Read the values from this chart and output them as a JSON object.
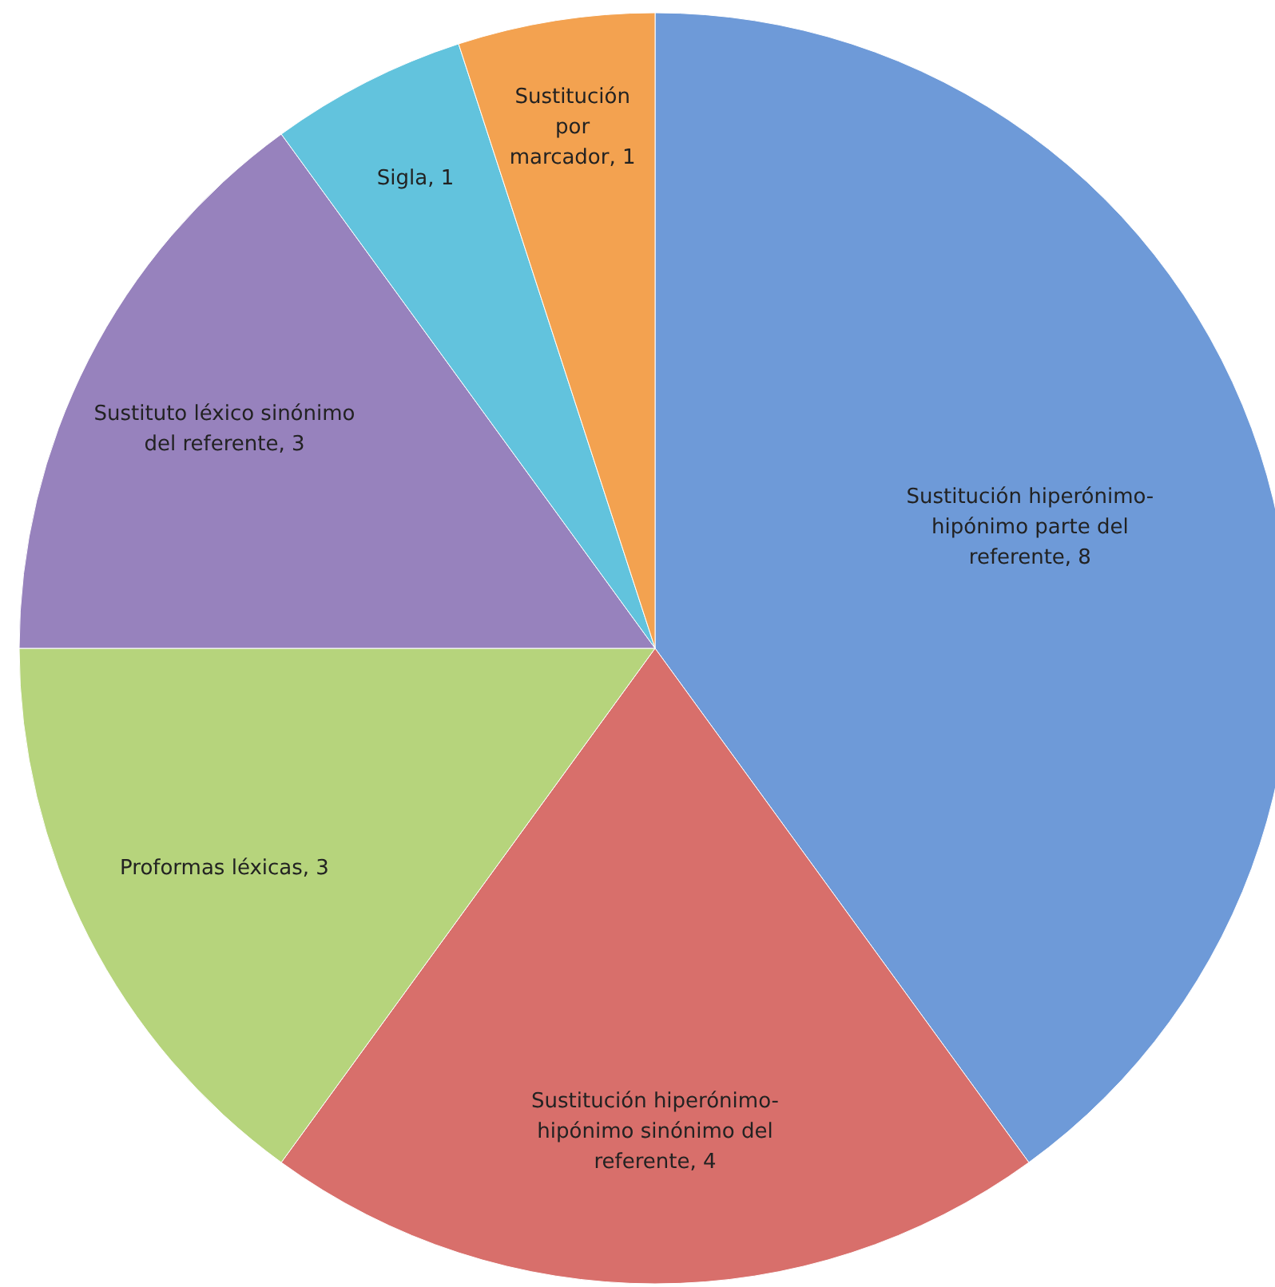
{
  "chart_data": {
    "type": "pie",
    "categories": [
      "Sustitución hiperónimo-hipónimo parte del referente",
      "Sustitución hiperónimo-hipónimo sinónimo del referente",
      "Proformas léxicas",
      "Sustituto léxico sinónimo del referente",
      "Sigla",
      "Sustitución por marcador"
    ],
    "values": [
      8,
      4,
      3,
      3,
      1,
      1
    ],
    "colors": [
      "#6e9ad8",
      "#d86f6b",
      "#b6d47c",
      "#9782bd",
      "#62c3dd",
      "#f3a250"
    ],
    "value_labels": [
      ", 8",
      ", 4",
      ", 3",
      ", 3",
      ", 1",
      ", 1"
    ]
  }
}
